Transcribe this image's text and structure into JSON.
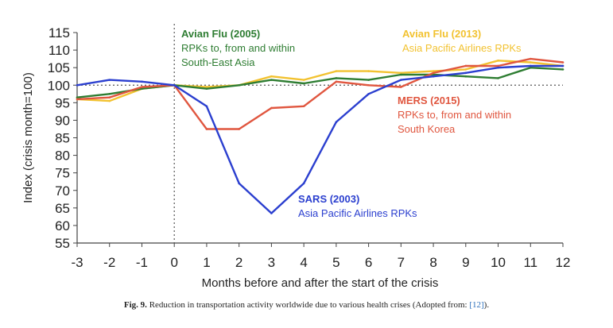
{
  "chart_data": {
    "type": "line",
    "x": [
      -3,
      -2,
      -1,
      0,
      1,
      2,
      3,
      4,
      5,
      6,
      7,
      8,
      9,
      10,
      11,
      12
    ],
    "xlabel": "Months before and after the start of the crisis",
    "ylabel": "Index (crisis month=100)",
    "ylim": [
      55,
      115
    ],
    "yticks": [
      55,
      60,
      65,
      70,
      75,
      80,
      85,
      90,
      95,
      100,
      105,
      110,
      115
    ],
    "xticks": [
      -3,
      -2,
      -1,
      0,
      1,
      2,
      3,
      4,
      5,
      6,
      7,
      8,
      9,
      10,
      11,
      12
    ],
    "grid": false,
    "reference_line": {
      "y": 100,
      "style": "dotted"
    },
    "crisis_marker": {
      "x": 0,
      "style": "dotted"
    },
    "series": [
      {
        "key": "avian2005",
        "name": "Avian Flu (2005)",
        "color": "#2e7d32",
        "values": [
          96.5,
          97.5,
          99,
          100,
          99,
          100,
          101.5,
          100.5,
          102,
          101.5,
          103,
          103,
          102.5,
          102,
          105,
          104.5
        ]
      },
      {
        "key": "avian2013",
        "name": "Avian Flu (2013)",
        "color": "#f2c230",
        "values": [
          96,
          95.5,
          99,
          100,
          99.5,
          100,
          102.5,
          101.5,
          104,
          104,
          103.5,
          104,
          104.5,
          107,
          106.5,
          105.5
        ]
      },
      {
        "key": "mers2015",
        "name": "MERS (2015)",
        "color": "#e0563f",
        "values": [
          96,
          96.5,
          99.5,
          100,
          87.5,
          87.5,
          93.5,
          94,
          101,
          100,
          99.5,
          103.5,
          105.5,
          105.5,
          107.5,
          106.5
        ]
      },
      {
        "key": "sars2003",
        "name": "SARS (2003)",
        "color": "#2b3fcf",
        "values": [
          100,
          101.5,
          101,
          100,
          94,
          72,
          63.5,
          72,
          89.5,
          97.5,
          101.5,
          102.5,
          103.5,
          105,
          105.5,
          105.5
        ]
      }
    ],
    "annotations": [
      {
        "series": "avian2005",
        "title": "Avian Flu (2005)",
        "lines": [
          "RPKs to, from and within",
          "South-East Asia"
        ]
      },
      {
        "series": "avian2013",
        "title": "Avian Flu (2013)",
        "lines": [
          "Asia Pacific Airlines RPKs"
        ]
      },
      {
        "series": "mers2015",
        "title": "MERS (2015)",
        "lines": [
          "RPKs to, from and within",
          "South Korea"
        ]
      },
      {
        "series": "sars2003",
        "title": "SARS (2003)",
        "lines": [
          "Asia Pacific Airlines RPKs"
        ]
      }
    ]
  },
  "caption": {
    "label": "Fig. 9.",
    "text": " Reduction in transportation activity worldwide due to various health crises (Adopted from: ",
    "ref": "[12]",
    "end": ")."
  }
}
